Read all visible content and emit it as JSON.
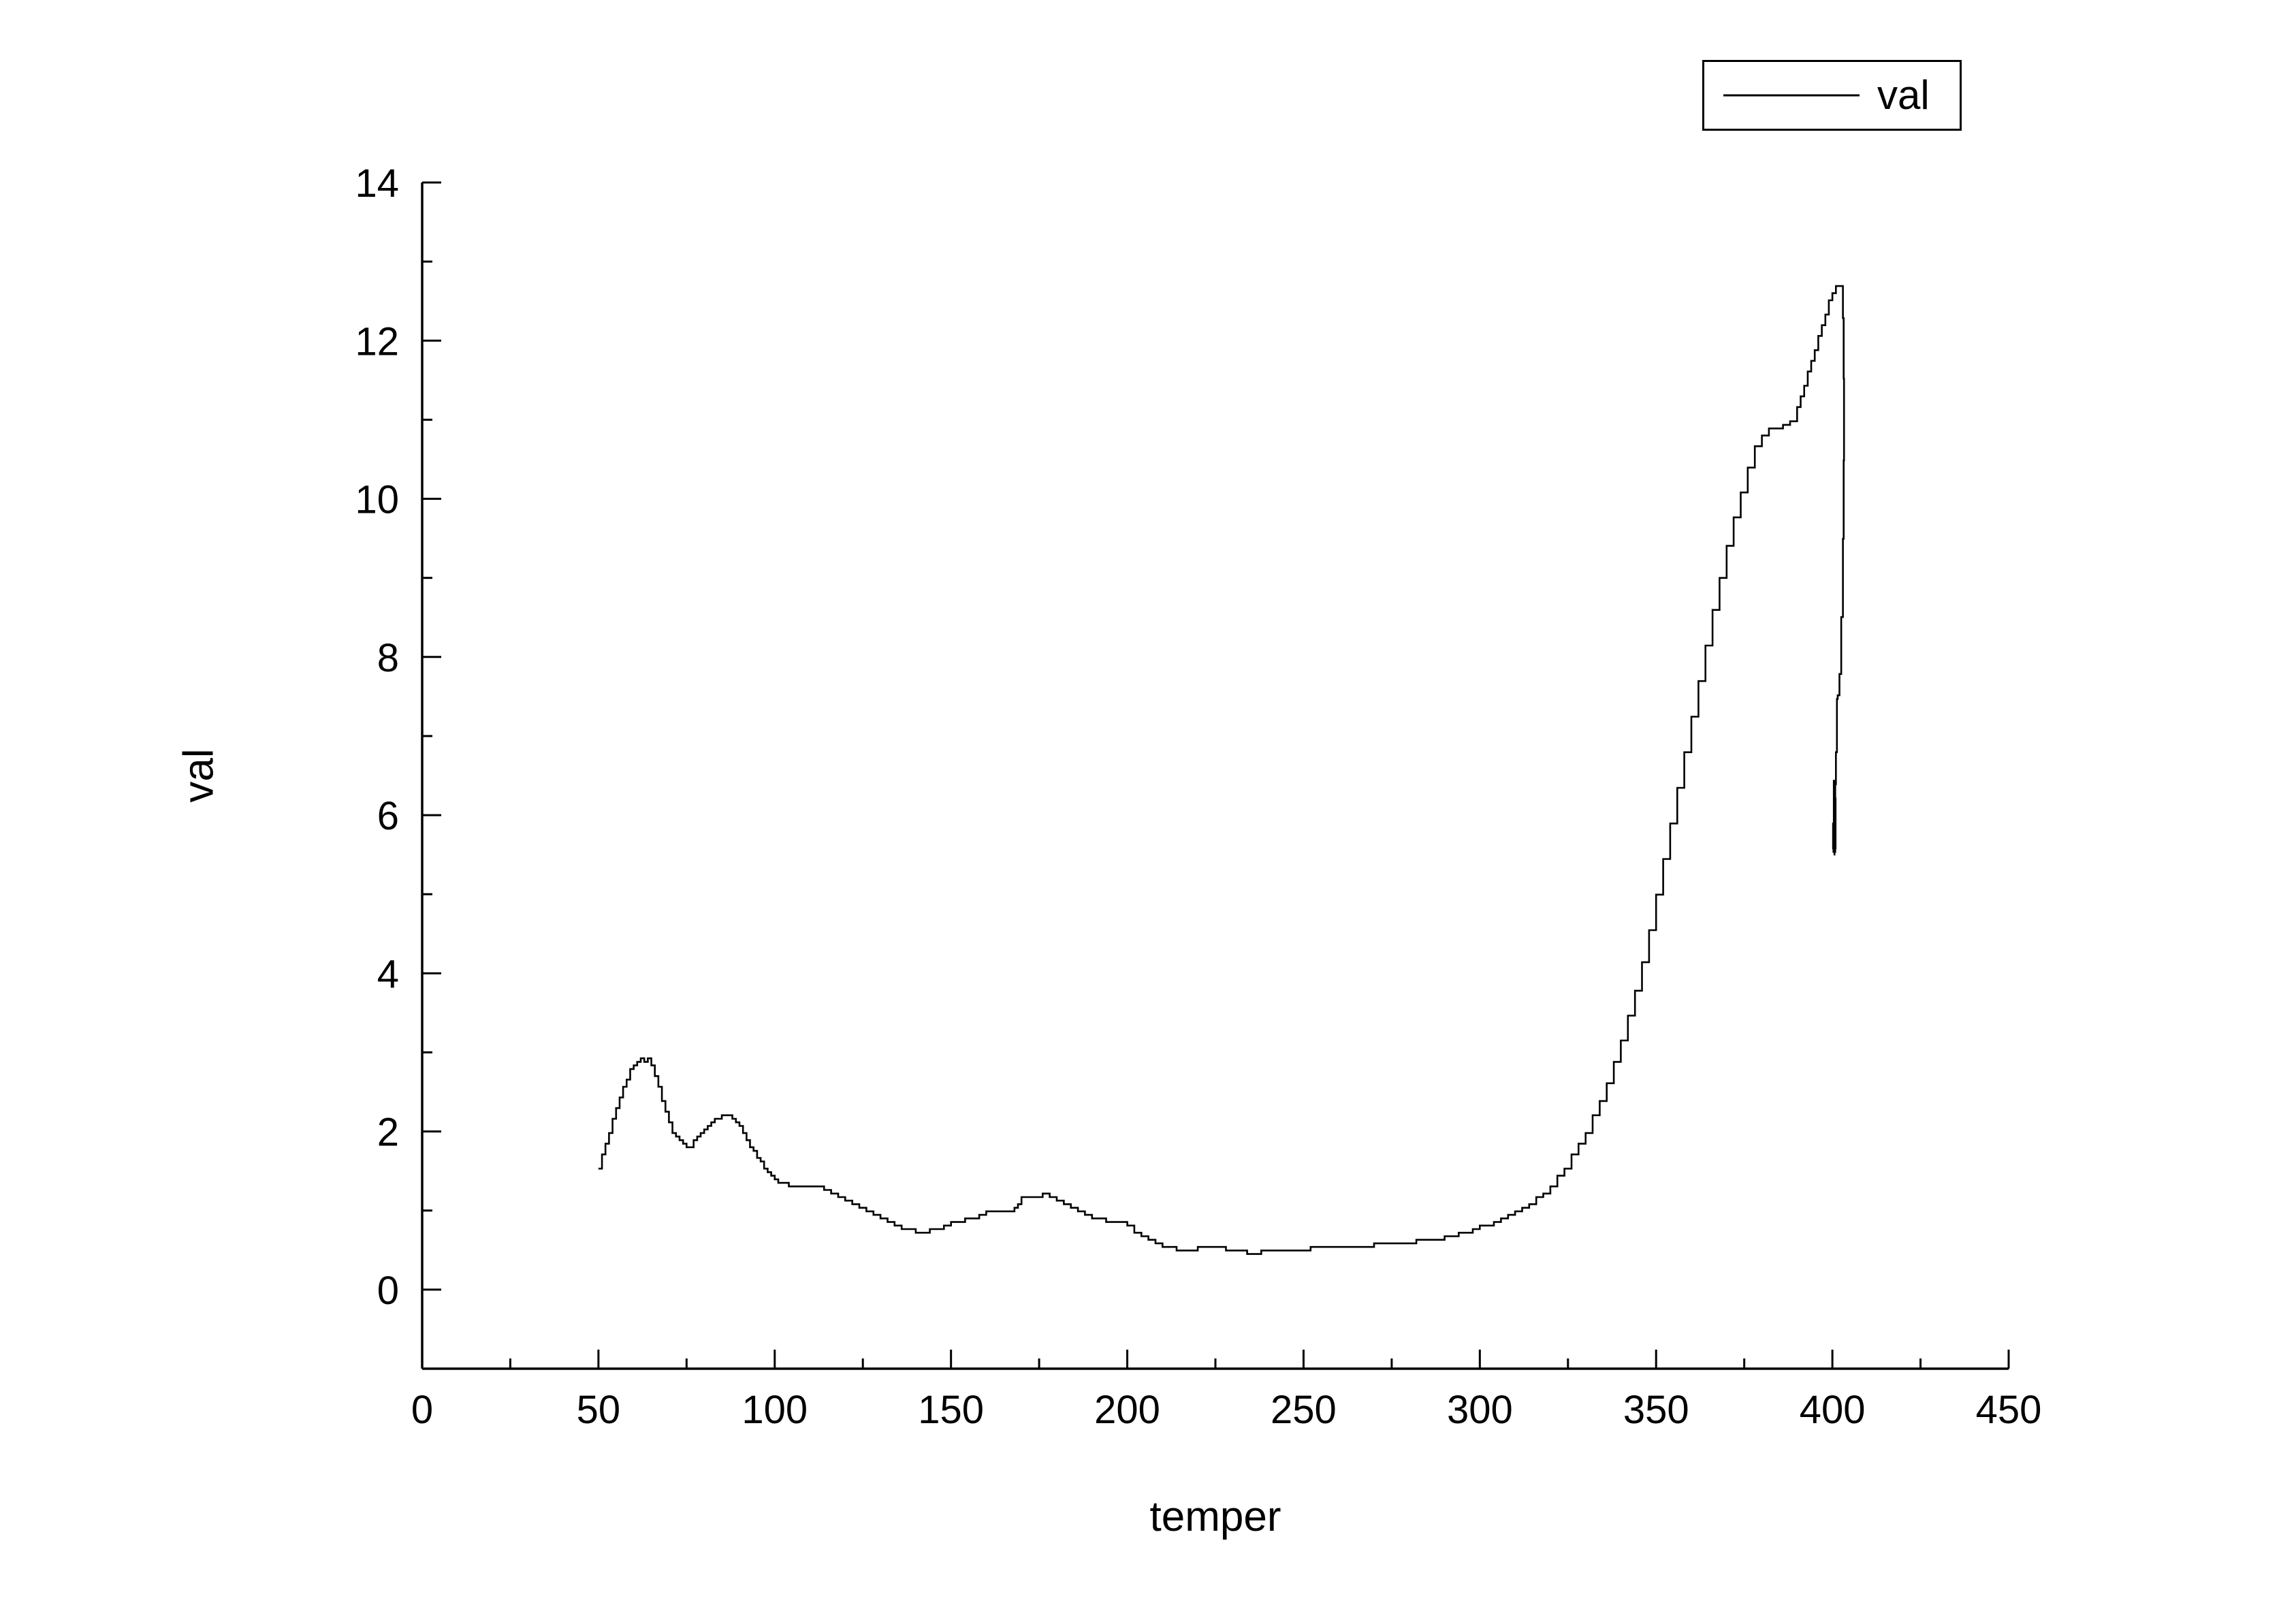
{
  "colors": {
    "line": "#000000",
    "axis": "#000000",
    "background": "#ffffff"
  },
  "chart_data": {
    "type": "line",
    "xlabel": "temper",
    "ylabel": "val",
    "xlim": [
      0,
      450
    ],
    "ylim": [
      -1,
      14
    ],
    "xticks": [
      0,
      50,
      100,
      150,
      200,
      250,
      300,
      350,
      400,
      450
    ],
    "yticks": [
      0,
      2,
      4,
      6,
      8,
      10,
      12,
      14
    ],
    "xminor": [
      25,
      75,
      125,
      175,
      225,
      275,
      325,
      375,
      425
    ],
    "yminor": [
      1,
      3,
      5,
      7,
      9,
      11,
      13
    ],
    "grid": false,
    "legend": {
      "position": "top-right",
      "entries": [
        {
          "label": "val",
          "color": "#000000"
        }
      ]
    },
    "series": [
      {
        "name": "val",
        "color": "#000000",
        "style": "step-line",
        "points": [
          [
            50,
            1.55
          ],
          [
            51,
            1.7
          ],
          [
            52,
            1.85
          ],
          [
            53,
            2.0
          ],
          [
            54,
            2.15
          ],
          [
            55,
            2.3
          ],
          [
            56,
            2.45
          ],
          [
            57,
            2.55
          ],
          [
            58,
            2.65
          ],
          [
            59,
            2.78
          ],
          [
            60,
            2.85
          ],
          [
            61,
            2.88
          ],
          [
            62,
            2.92
          ],
          [
            63,
            2.9
          ],
          [
            64,
            2.92
          ],
          [
            65,
            2.85
          ],
          [
            66,
            2.7
          ],
          [
            67,
            2.55
          ],
          [
            68,
            2.4
          ],
          [
            69,
            2.25
          ],
          [
            70,
            2.1
          ],
          [
            71,
            2.0
          ],
          [
            72,
            1.92
          ],
          [
            73,
            1.87
          ],
          [
            74,
            1.83
          ],
          [
            75,
            1.8
          ],
          [
            76,
            1.82
          ],
          [
            77,
            1.87
          ],
          [
            78,
            1.92
          ],
          [
            79,
            1.97
          ],
          [
            80,
            2.02
          ],
          [
            81,
            2.06
          ],
          [
            82,
            2.1
          ],
          [
            83,
            2.15
          ],
          [
            84,
            2.18
          ],
          [
            85,
            2.2
          ],
          [
            86,
            2.22
          ],
          [
            87,
            2.2
          ],
          [
            88,
            2.17
          ],
          [
            89,
            2.12
          ],
          [
            90,
            2.06
          ],
          [
            91,
            1.98
          ],
          [
            92,
            1.9
          ],
          [
            93,
            1.82
          ],
          [
            94,
            1.75
          ],
          [
            95,
            1.68
          ],
          [
            96,
            1.6
          ],
          [
            97,
            1.55
          ],
          [
            98,
            1.5
          ],
          [
            99,
            1.45
          ],
          [
            100,
            1.4
          ],
          [
            101,
            1.37
          ],
          [
            102,
            1.35
          ],
          [
            104,
            1.32
          ],
          [
            106,
            1.3
          ],
          [
            108,
            1.3
          ],
          [
            110,
            1.32
          ],
          [
            112,
            1.3
          ],
          [
            114,
            1.27
          ],
          [
            116,
            1.22
          ],
          [
            118,
            1.18
          ],
          [
            120,
            1.13
          ],
          [
            122,
            1.08
          ],
          [
            124,
            1.03
          ],
          [
            126,
            0.98
          ],
          [
            128,
            0.95
          ],
          [
            130,
            0.9
          ],
          [
            132,
            0.86
          ],
          [
            134,
            0.82
          ],
          [
            136,
            0.78
          ],
          [
            138,
            0.75
          ],
          [
            140,
            0.73
          ],
          [
            142,
            0.73
          ],
          [
            144,
            0.75
          ],
          [
            146,
            0.78
          ],
          [
            148,
            0.8
          ],
          [
            150,
            0.84
          ],
          [
            152,
            0.87
          ],
          [
            154,
            0.9
          ],
          [
            156,
            0.92
          ],
          [
            158,
            0.95
          ],
          [
            160,
            0.97
          ],
          [
            162,
            0.99
          ],
          [
            164,
            1.0
          ],
          [
            166,
            1.0
          ],
          [
            168,
            1.02
          ],
          [
            169,
            1.1
          ],
          [
            170,
            1.15
          ],
          [
            172,
            1.17
          ],
          [
            174,
            1.18
          ],
          [
            176,
            1.2
          ],
          [
            178,
            1.17
          ],
          [
            180,
            1.13
          ],
          [
            182,
            1.1
          ],
          [
            184,
            1.05
          ],
          [
            186,
            1.0
          ],
          [
            188,
            0.95
          ],
          [
            190,
            0.9
          ],
          [
            192,
            0.88
          ],
          [
            194,
            0.87
          ],
          [
            196,
            0.86
          ],
          [
            198,
            0.84
          ],
          [
            200,
            0.8
          ],
          [
            202,
            0.74
          ],
          [
            204,
            0.68
          ],
          [
            206,
            0.63
          ],
          [
            208,
            0.58
          ],
          [
            210,
            0.55
          ],
          [
            212,
            0.52
          ],
          [
            214,
            0.5
          ],
          [
            216,
            0.5
          ],
          [
            218,
            0.51
          ],
          [
            220,
            0.53
          ],
          [
            222,
            0.55
          ],
          [
            224,
            0.54
          ],
          [
            226,
            0.52
          ],
          [
            228,
            0.5
          ],
          [
            230,
            0.49
          ],
          [
            232,
            0.48
          ],
          [
            234,
            0.47
          ],
          [
            236,
            0.47
          ],
          [
            238,
            0.48
          ],
          [
            240,
            0.49
          ],
          [
            242,
            0.48
          ],
          [
            244,
            0.49
          ],
          [
            246,
            0.5
          ],
          [
            248,
            0.5
          ],
          [
            250,
            0.51
          ],
          [
            252,
            0.52
          ],
          [
            254,
            0.53
          ],
          [
            256,
            0.54
          ],
          [
            258,
            0.54
          ],
          [
            260,
            0.55
          ],
          [
            262,
            0.55
          ],
          [
            264,
            0.56
          ],
          [
            266,
            0.55
          ],
          [
            268,
            0.56
          ],
          [
            270,
            0.57
          ],
          [
            272,
            0.57
          ],
          [
            274,
            0.58
          ],
          [
            276,
            0.58
          ],
          [
            278,
            0.59
          ],
          [
            280,
            0.6
          ],
          [
            282,
            0.61
          ],
          [
            284,
            0.62
          ],
          [
            286,
            0.64
          ],
          [
            288,
            0.65
          ],
          [
            290,
            0.67
          ],
          [
            292,
            0.69
          ],
          [
            294,
            0.71
          ],
          [
            296,
            0.73
          ],
          [
            298,
            0.76
          ],
          [
            300,
            0.8
          ],
          [
            302,
            0.83
          ],
          [
            304,
            0.86
          ],
          [
            306,
            0.9
          ],
          [
            308,
            0.93
          ],
          [
            310,
            0.97
          ],
          [
            312,
            1.02
          ],
          [
            314,
            1.08
          ],
          [
            316,
            1.15
          ],
          [
            318,
            1.23
          ],
          [
            320,
            1.32
          ],
          [
            322,
            1.42
          ],
          [
            324,
            1.55
          ],
          [
            326,
            1.7
          ],
          [
            328,
            1.85
          ],
          [
            330,
            2.0
          ],
          [
            332,
            2.2
          ],
          [
            334,
            2.4
          ],
          [
            336,
            2.62
          ],
          [
            338,
            2.87
          ],
          [
            340,
            3.15
          ],
          [
            342,
            3.45
          ],
          [
            344,
            3.8
          ],
          [
            346,
            4.15
          ],
          [
            348,
            4.55
          ],
          [
            350,
            5.0
          ],
          [
            352,
            5.45
          ],
          [
            354,
            5.9
          ],
          [
            356,
            6.35
          ],
          [
            358,
            6.8
          ],
          [
            360,
            7.25
          ],
          [
            362,
            7.7
          ],
          [
            364,
            8.15
          ],
          [
            366,
            8.6
          ],
          [
            368,
            9.0
          ],
          [
            370,
            9.4
          ],
          [
            372,
            9.75
          ],
          [
            374,
            10.1
          ],
          [
            376,
            10.4
          ],
          [
            378,
            10.65
          ],
          [
            380,
            10.8
          ],
          [
            382,
            10.88
          ],
          [
            384,
            10.9
          ],
          [
            386,
            10.92
          ],
          [
            388,
            11.0
          ],
          [
            390,
            11.15
          ],
          [
            391,
            11.3
          ],
          [
            392,
            11.45
          ],
          [
            393,
            11.6
          ],
          [
            394,
            11.75
          ],
          [
            395,
            11.9
          ],
          [
            396,
            12.05
          ],
          [
            397,
            12.2
          ],
          [
            398,
            12.35
          ],
          [
            399,
            12.5
          ],
          [
            400,
            12.6
          ],
          [
            401,
            12.67
          ],
          [
            402,
            12.7
          ],
          [
            402.5,
            12.68
          ],
          [
            403,
            12.3
          ],
          [
            403.2,
            11.5
          ],
          [
            403.3,
            10.5
          ],
          [
            403.2,
            9.5
          ],
          [
            403,
            8.5
          ],
          [
            402.5,
            7.8
          ],
          [
            402,
            7.5
          ],
          [
            401.5,
            7.45
          ],
          [
            401.3,
            6.8
          ],
          [
            401,
            6.4
          ],
          [
            400.8,
            6.0
          ],
          [
            400.5,
            5.7
          ],
          [
            400.3,
            5.55
          ],
          [
            400.6,
            5.6
          ],
          [
            400.9,
            6.2
          ],
          [
            400.7,
            6.45
          ],
          [
            400.4,
            5.9
          ],
          [
            400.2,
            5.6
          ],
          [
            400.5,
            5.55
          ],
          [
            400.8,
            5.75
          ],
          [
            400.6,
            5.5
          ]
        ]
      }
    ]
  }
}
